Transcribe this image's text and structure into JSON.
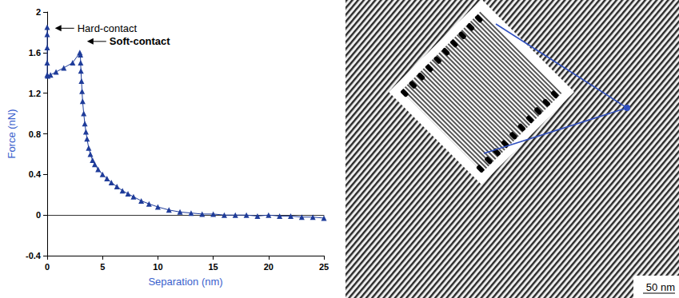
{
  "chart_data": {
    "type": "line",
    "marker": "triangle",
    "color": "#1f3c9a",
    "x_label": "Separation (nm)",
    "y_label": "Force (nN)",
    "x": [
      0,
      0,
      0,
      0,
      0,
      0.05,
      0.3,
      0.8,
      1.5,
      2.3,
      2.95,
      3.0,
      3.02,
      3.05,
      3.1,
      3.15,
      3.2,
      3.3,
      3.4,
      3.5,
      3.6,
      3.75,
      3.9,
      4.1,
      4.3,
      4.6,
      5.0,
      5.4,
      5.8,
      6.3,
      6.8,
      7.3,
      7.8,
      8.5,
      9.2,
      10,
      11,
      12,
      13,
      14,
      15,
      16,
      17,
      18,
      19,
      20,
      21,
      22,
      23,
      24,
      25
    ],
    "values": [
      1.85,
      1.78,
      1.65,
      1.5,
      1.38,
      1.37,
      1.38,
      1.41,
      1.45,
      1.5,
      1.6,
      1.58,
      1.5,
      1.42,
      1.32,
      1.22,
      1.12,
      1.0,
      0.9,
      0.82,
      0.75,
      0.66,
      0.6,
      0.54,
      0.5,
      0.45,
      0.4,
      0.36,
      0.32,
      0.28,
      0.24,
      0.21,
      0.18,
      0.14,
      0.11,
      0.08,
      0.05,
      0.03,
      0.02,
      0.01,
      0.01,
      0.0,
      0.0,
      0.0,
      -0.01,
      0.0,
      -0.01,
      -0.01,
      -0.02,
      -0.02,
      -0.03
    ],
    "xlim": [
      0,
      25
    ],
    "xticks": [
      0,
      5,
      10,
      15,
      20,
      25
    ],
    "ylim": [
      -0.4,
      2
    ],
    "yticks": [
      -0.4,
      0,
      0.4,
      0.8,
      1.2,
      1.6,
      2
    ],
    "grid": false,
    "annotations": [
      {
        "text": "Hard-contact",
        "x": 0.7,
        "y": 1.84
      },
      {
        "text": "Soft-contact",
        "x": 3.6,
        "y": 1.71
      }
    ]
  },
  "image": {
    "scale_bar": "50 nm"
  }
}
